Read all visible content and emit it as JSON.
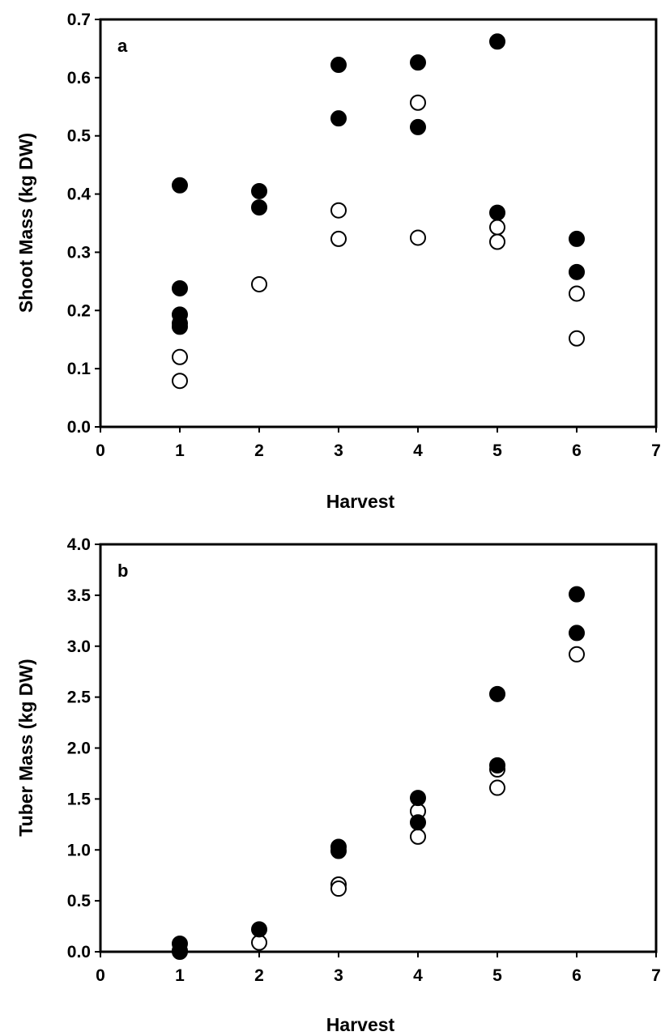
{
  "chart_data": [
    {
      "type": "scatter",
      "panel_label": "a",
      "xlabel": "Harvest",
      "ylabel": "Shoot Mass (kg DW)",
      "xlim": [
        0,
        7
      ],
      "ylim": [
        0,
        0.7
      ],
      "xticks": [
        "0",
        "1",
        "2",
        "3",
        "4",
        "5",
        "6",
        "7"
      ],
      "yticks": [
        "0.0",
        "0.1",
        "0.2",
        "0.3",
        "0.4",
        "0.5",
        "0.6",
        "0.7"
      ],
      "grid": false,
      "legend": "none",
      "series": [
        {
          "marker": "filled-circle",
          "color": "#000000",
          "x": [
            1,
            1,
            1,
            1,
            1,
            2,
            2,
            3,
            3,
            4,
            4,
            5,
            5,
            6,
            6
          ],
          "y": [
            0.415,
            0.238,
            0.193,
            0.178,
            0.172,
            0.405,
            0.377,
            0.622,
            0.53,
            0.626,
            0.515,
            0.662,
            0.368,
            0.323,
            0.266
          ]
        },
        {
          "marker": "open-circle",
          "color": "#000000",
          "x": [
            1,
            1,
            2,
            3,
            3,
            4,
            4,
            5,
            5,
            6,
            6
          ],
          "y": [
            0.12,
            0.079,
            0.245,
            0.372,
            0.323,
            0.557,
            0.325,
            0.343,
            0.318,
            0.229,
            0.152
          ]
        }
      ]
    },
    {
      "type": "scatter",
      "panel_label": "b",
      "xlabel": "Harvest",
      "ylabel": "Tuber Mass (kg DW)",
      "xlim": [
        0,
        7
      ],
      "ylim": [
        0,
        4
      ],
      "xticks": [
        "0",
        "1",
        "2",
        "3",
        "4",
        "5",
        "6",
        "7"
      ],
      "yticks": [
        "0.0",
        "0.5",
        "1.0",
        "1.5",
        "2.0",
        "2.5",
        "3.0",
        "3.5",
        "4.0"
      ],
      "grid": false,
      "legend": "none",
      "series": [
        {
          "marker": "filled-circle",
          "color": "#000000",
          "x": [
            1,
            1,
            2,
            3,
            3,
            4,
            4,
            5,
            5,
            6,
            6
          ],
          "y": [
            0.08,
            0.01,
            0.22,
            1.03,
            0.99,
            1.51,
            1.27,
            2.53,
            1.83,
            3.51,
            3.13
          ]
        },
        {
          "marker": "open-circle",
          "color": "#000000",
          "x": [
            1,
            2,
            3,
            3,
            4,
            4,
            5,
            5,
            6
          ],
          "y": [
            0.0,
            0.09,
            0.66,
            0.62,
            1.38,
            1.13,
            1.79,
            1.61,
            2.92
          ]
        }
      ]
    }
  ]
}
